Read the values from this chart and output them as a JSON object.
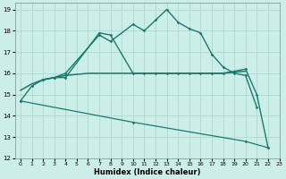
{
  "xlabel": "Humidex (Indice chaleur)",
  "xlim": [
    -0.5,
    23
  ],
  "ylim": [
    12,
    19.3
  ],
  "yticks": [
    12,
    13,
    14,
    15,
    16,
    17,
    18,
    19
  ],
  "xticks": [
    0,
    1,
    2,
    3,
    4,
    5,
    6,
    7,
    8,
    9,
    10,
    11,
    12,
    13,
    14,
    15,
    16,
    17,
    18,
    19,
    20,
    21,
    22,
    23
  ],
  "bg_color": "#cceee8",
  "grid_color": "#b0d8d0",
  "line_color": "#1a7a6e",
  "line1": {
    "x": [
      0,
      1,
      2,
      3,
      4,
      7,
      8,
      10,
      11,
      12,
      13,
      14,
      15,
      16,
      17,
      18,
      19,
      20,
      21
    ],
    "y": [
      14.7,
      15.4,
      15.7,
      15.8,
      16.0,
      17.8,
      17.5,
      18.3,
      18.0,
      18.5,
      19.0,
      18.4,
      18.1,
      17.9,
      16.9,
      16.3,
      16.0,
      15.9,
      14.4
    ]
  },
  "line2": {
    "x": [
      2,
      3,
      4,
      7,
      8,
      10,
      11,
      12,
      13,
      14,
      15,
      16,
      17,
      18,
      19,
      20,
      21,
      22
    ],
    "y": [
      15.7,
      15.8,
      15.8,
      17.9,
      17.8,
      16.0,
      16.0,
      16.0,
      16.0,
      16.0,
      16.0,
      16.0,
      16.0,
      16.0,
      16.1,
      16.2,
      15.0,
      12.5
    ]
  },
  "line3": {
    "x": [
      0,
      1,
      2,
      3,
      4,
      5,
      6,
      7,
      8,
      9,
      10,
      11,
      12,
      13,
      14,
      15,
      16,
      17,
      18,
      19,
      20
    ],
    "y": [
      15.2,
      15.5,
      15.7,
      15.8,
      15.9,
      15.95,
      16.0,
      16.0,
      16.0,
      16.0,
      16.0,
      16.0,
      16.0,
      16.0,
      16.0,
      16.0,
      16.0,
      16.0,
      16.0,
      16.05,
      16.1
    ]
  },
  "line4": {
    "x": [
      0,
      10,
      20,
      22
    ],
    "y": [
      14.7,
      13.7,
      12.8,
      12.5
    ]
  }
}
